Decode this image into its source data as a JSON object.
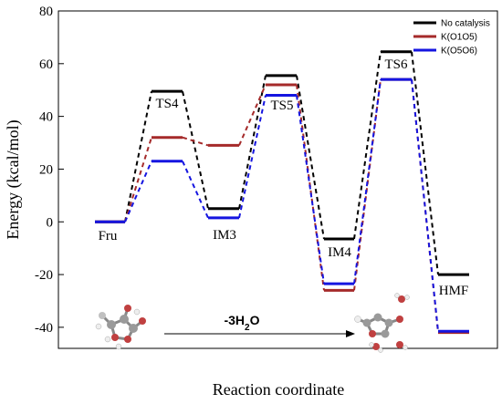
{
  "chart_data": {
    "type": "line",
    "xlabel": "Reaction coordinate",
    "ylabel": "Energy (kcal/mol)",
    "ylim": [
      -48,
      80
    ],
    "yticks": [
      80,
      60,
      40,
      20,
      0,
      -20,
      -40
    ],
    "grid": false,
    "legend_position": "top-right",
    "states": [
      "Fru",
      "TS4",
      "IM3",
      "TS5",
      "IM4",
      "TS6",
      "HMF"
    ],
    "series": [
      {
        "name": "No catalysis",
        "color": "#000000",
        "values": [
          0,
          49.5,
          5,
          55.5,
          -6.5,
          64.5,
          -20
        ]
      },
      {
        "name": "K(O1O5)",
        "color": "#A52A2A",
        "values": [
          0,
          32,
          29,
          52,
          -26,
          54,
          -42
        ]
      },
      {
        "name": "K(O5O6)",
        "color": "#1515E0",
        "values": [
          0,
          23,
          1.5,
          48,
          -23.5,
          54,
          -41.5
        ]
      }
    ],
    "annotation": {
      "text": "-3H",
      "subscript": "2",
      "suffix": "O"
    }
  },
  "molecule_icons": [
    "fructose-molecule-icon",
    "hmf-molecule-icon"
  ],
  "arrow_icon": "right-arrow-icon"
}
